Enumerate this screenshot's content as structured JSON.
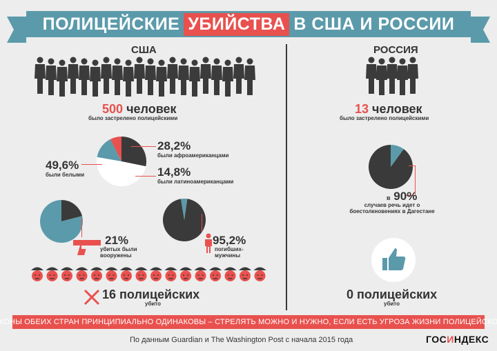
{
  "title": {
    "part1": "ПОЛИЦЕЙСКИЕ",
    "highlight": "УБИЙСТВА",
    "part2": "В США И РОССИИ"
  },
  "usa": {
    "label": "США",
    "killed_number": "500",
    "killed_unit": "человек",
    "killed_caption": "было застрелено полицейскими",
    "african_american_pct": "28,2%",
    "african_american_caption": "были афроамериканцами",
    "white_pct": "49,6%",
    "white_caption": "были белыми",
    "latino_pct": "14,8%",
    "latino_caption": "были латиноамериканцами",
    "armed_pct": "21%",
    "armed_caption_1": "убитых были",
    "armed_caption_2": "вооружены",
    "male_pct": "95,2%",
    "male_caption_1": "погибших-",
    "male_caption_2": "мужчины",
    "police_killed": "16 полицейских",
    "police_killed_caption": "убито"
  },
  "russia": {
    "label": "РОССИЯ",
    "killed_number": "13",
    "killed_unit": "человек",
    "killed_caption": "было застрелено полицейскими",
    "dagestan_prefix": "в",
    "dagestan_pct": "90%",
    "dagestan_caption_1": "случаев речь идет о",
    "dagestan_caption_2": "боестолкновениях в Дагестане",
    "police_killed": "0 полицейских",
    "police_killed_caption": "убито"
  },
  "chart_data": [
    {
      "type": "pie",
      "title": "",
      "categories": [
        "афроамериканцы",
        "белые",
        "латиноамериканцы",
        "другие"
      ],
      "values": [
        28.2,
        49.6,
        14.8,
        7.4
      ]
    },
    {
      "type": "pie",
      "title": "",
      "categories": [
        "вооружены",
        "другие"
      ],
      "values": [
        21,
        79
      ]
    },
    {
      "type": "pie",
      "title": "",
      "categories": [
        "мужчины",
        "другие"
      ],
      "values": [
        95.2,
        4.8
      ]
    },
    {
      "type": "pie",
      "title": "",
      "categories": [
        "Дагестан",
        "другие"
      ],
      "values": [
        90,
        10
      ]
    }
  ],
  "bottom_banner": "ЗАКОНЫ ОБЕИХ СТРАН ПРИНЦИПИАЛЬНО ОДИНАКОВЫ – СТРЕЛЯТЬ МОЖНО И НУЖНО, ЕСЛИ ЕСТЬ УГРОЗА ЖИЗНИ ПОЛИЦЕЙСКОГО",
  "source": "По данным Guardian и The Washington Post с начала 2015 года",
  "logo": {
    "part1": "ГОС",
    "accent": "И",
    "part2": "НДЕКС"
  },
  "colors": {
    "red": "#e8514e",
    "teal": "#5b9aaa",
    "dark": "#3a3a3a",
    "white": "#ffffff"
  }
}
